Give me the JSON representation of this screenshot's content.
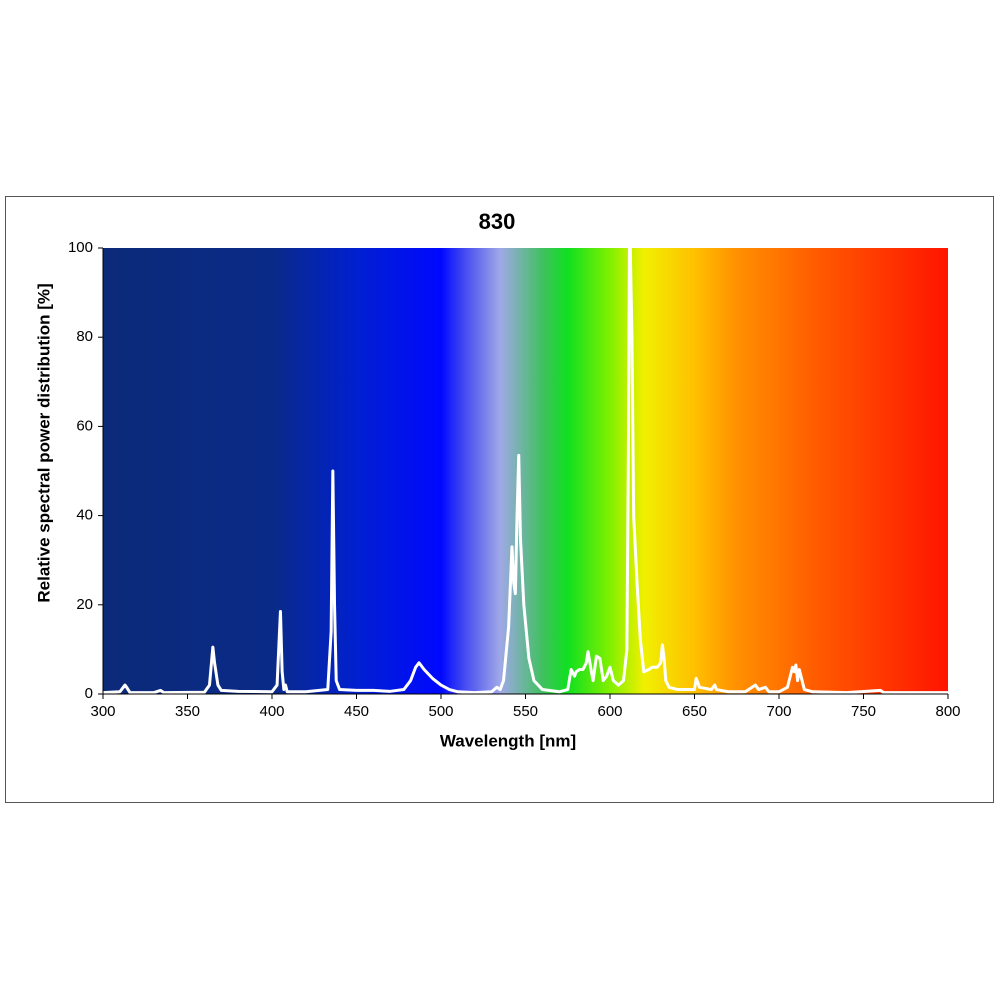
{
  "chart_data": {
    "type": "line",
    "title": "830",
    "x_label": "Wavelength [nm]",
    "y_label": "Relative spectral power distribution [%]",
    "color": "#ffffff",
    "x": [
      300,
      310,
      312,
      313,
      314,
      316,
      330,
      334,
      336,
      360,
      363,
      365,
      366,
      368,
      370,
      380,
      400,
      403,
      405,
      406,
      407,
      408,
      409,
      420,
      433,
      435,
      436,
      437,
      438,
      440,
      450,
      460,
      470,
      478,
      482,
      485,
      487,
      490,
      495,
      500,
      505,
      510,
      520,
      530,
      533,
      535,
      537,
      540,
      542,
      543,
      544,
      545,
      546,
      547,
      549,
      552,
      555,
      560,
      570,
      575,
      577,
      579,
      580,
      582,
      584,
      586,
      587,
      589,
      590,
      592,
      594,
      596,
      598,
      600,
      602,
      605,
      608,
      610,
      611,
      611.5,
      612,
      613,
      614,
      616,
      618,
      620,
      623,
      625,
      628,
      630,
      631,
      632,
      633,
      635,
      640,
      650,
      651,
      653,
      660,
      662,
      663,
      670,
      680,
      686,
      688,
      692,
      694,
      700,
      705,
      707,
      708,
      709,
      710,
      711,
      712,
      713,
      715,
      720,
      740,
      760,
      762,
      780,
      800
    ],
    "values": [
      0.3,
      0.5,
      1.5,
      2,
      1.5,
      0.3,
      0.3,
      0.8,
      0.3,
      0.4,
      2,
      10.5,
      7,
      2,
      0.8,
      0.6,
      0.5,
      2,
      18.5,
      5,
      1,
      2,
      0.5,
      0.5,
      1,
      14,
      50,
      20,
      3,
      1,
      0.8,
      0.8,
      0.6,
      1,
      3,
      6,
      7,
      5.5,
      3.5,
      2,
      1,
      0.5,
      0.3,
      0.5,
      1.5,
      1,
      3,
      15,
      33,
      25,
      22.5,
      40,
      53.5,
      35,
      20,
      8,
      3,
      1,
      0.5,
      1,
      5.5,
      4,
      5,
      5.5,
      5.5,
      7,
      9.5,
      5,
      3,
      8.5,
      8,
      3,
      4,
      6,
      3,
      2,
      3,
      10,
      60,
      100,
      100,
      80,
      40,
      25,
      12,
      5,
      5.5,
      6,
      6,
      7,
      11,
      8,
      3,
      1.5,
      1,
      1,
      3.5,
      1.5,
      1,
      2,
      1,
      0.5,
      0.5,
      2,
      1,
      1.5,
      0.5,
      0.5,
      1.5,
      4.5,
      6,
      5,
      6.5,
      3,
      5.5,
      4,
      1,
      0.5,
      0.3,
      0.8,
      0.3,
      0.3,
      0.3
    ],
    "xlim": [
      300,
      800
    ],
    "xticks": [
      300,
      350,
      400,
      450,
      500,
      550,
      600,
      650,
      700,
      750,
      800
    ],
    "ylim": [
      0,
      100
    ],
    "yticks": [
      0,
      20,
      40,
      60,
      80,
      100
    ]
  }
}
